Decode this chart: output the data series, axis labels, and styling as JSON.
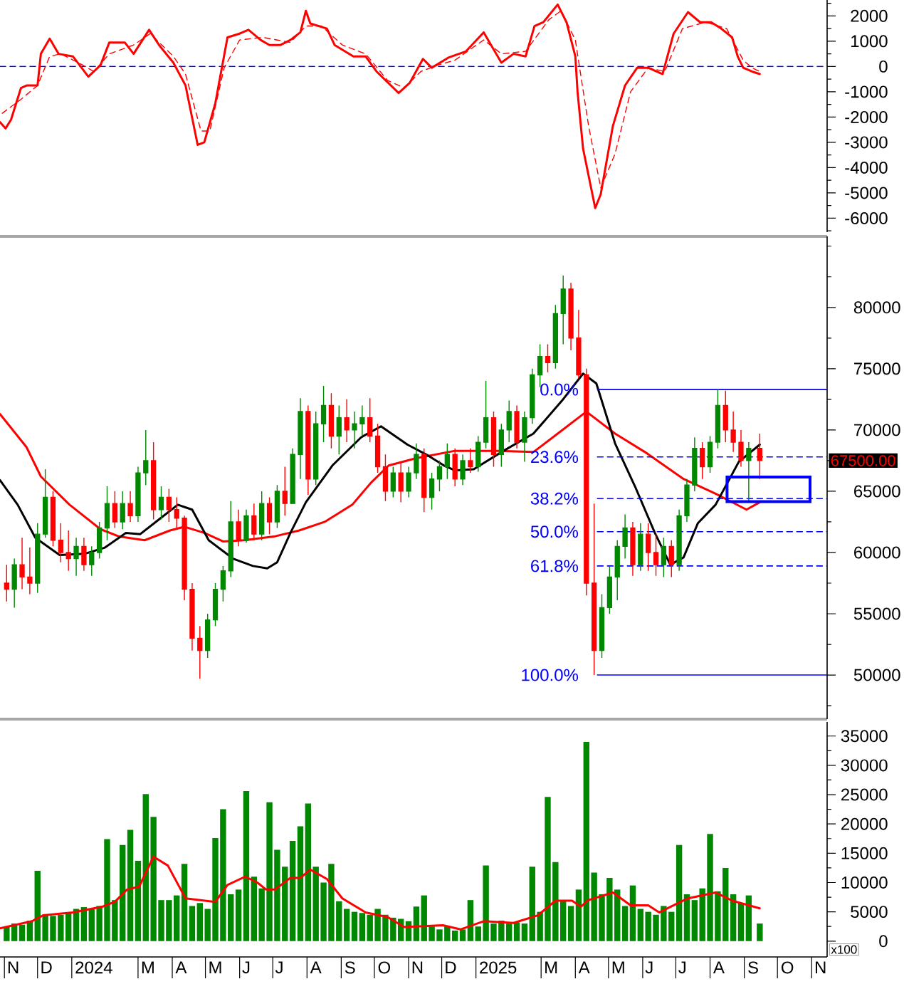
{
  "chart_data": [
    {
      "type": "line",
      "xlim": [
        "2023-10-28",
        "2025-11-15"
      ],
      "ylim": [
        -6550,
        2630
      ],
      "yticks": [
        {
          "value": 2500,
          "label": null
        },
        2000,
        {
          "value": 1500,
          "label": null
        },
        1000,
        {
          "value": 500,
          "label": null
        },
        0,
        {
          "value": -500,
          "label": null
        },
        -1000,
        {
          "value": -1500,
          "label": null
        },
        -2000,
        {
          "value": -2500,
          "label": null
        },
        -3000,
        {
          "value": -3500,
          "label": null
        },
        -4000,
        {
          "value": -4500,
          "label": null
        },
        -5000,
        {
          "value": -5500,
          "label": null
        },
        -6000,
        {
          "value": -6500,
          "label": null
        }
      ],
      "tick_labels": "y",
      "ref_lines": [
        {
          "axis": "y",
          "value": 0,
          "color": "#0000ff",
          "line_style": "dashed"
        }
      ],
      "series": [
        {
          "color": "#ff0000",
          "x": [
            "2023-10-28",
            "2023-11-02",
            "2023-11-07",
            "2023-11-16",
            "2023-11-21",
            "2023-12-01",
            "2023-12-04",
            "2023-12-12",
            "2023-12-20",
            "2024-01-02",
            "2024-01-16",
            "2024-01-27",
            "2024-02-04",
            "2024-02-18",
            "2024-02-26",
            "2024-03-11",
            "2024-03-20",
            "2024-04-02",
            "2024-04-13",
            "2024-04-24",
            "2024-04-30",
            "2024-05-10",
            "2024-05-21",
            "2024-06-01",
            "2024-06-09",
            "2024-06-20",
            "2024-06-28",
            "2024-07-08",
            "2024-07-17",
            "2024-07-26",
            "2024-07-31",
            "2024-08-04",
            "2024-08-19",
            "2024-08-26",
            "2024-09-12",
            "2024-09-23",
            "2024-10-03",
            "2024-10-23",
            "2024-11-02",
            "2024-11-14",
            "2024-11-22",
            "2024-12-07",
            "2024-12-23",
            "2025-01-08",
            "2025-01-24",
            "2025-02-04",
            "2025-02-15",
            "2025-02-23",
            "2025-03-03",
            "2025-03-16",
            "2025-03-24",
            "2025-04-01",
            "2025-04-03",
            "2025-04-08",
            "2025-04-19",
            "2025-04-24",
            "2025-05-05",
            "2025-05-16",
            "2025-05-27",
            "2025-06-06",
            "2025-06-19",
            "2025-06-29",
            "2025-07-12",
            "2025-07-23",
            "2025-08-02",
            "2025-08-11",
            "2025-08-21",
            "2025-08-26",
            "2025-08-31",
            "2025-09-08",
            "2025-09-15"
          ],
          "values": [
            -2200,
            -2450,
            -2100,
            -850,
            -750,
            -750,
            500,
            1100,
            500,
            400,
            -400,
            50,
            950,
            950,
            500,
            1450,
            850,
            150,
            -750,
            -3100,
            -3000,
            -1450,
            1150,
            1300,
            1450,
            1050,
            850,
            850,
            1050,
            1350,
            2200,
            1700,
            1500,
            850,
            400,
            400,
            -200,
            -1050,
            -650,
            300,
            -50,
            350,
            600,
            1350,
            150,
            500,
            400,
            1600,
            1750,
            2450,
            1750,
            400,
            -1000,
            -3250,
            -5600,
            -5050,
            -2350,
            -750,
            -50,
            -50,
            -300,
            1300,
            2150,
            1750,
            1750,
            1500,
            1150,
            400,
            -50,
            -200,
            -300
          ]
        },
        {
          "color": "#ff0000",
          "line_style": "dashed",
          "x": [
            "2023-10-30",
            "2023-11-16",
            "2023-12-01",
            "2023-12-12",
            "2023-12-22",
            "2024-01-07",
            "2024-01-21",
            "2024-02-04",
            "2024-02-26",
            "2024-03-12",
            "2024-04-02",
            "2024-04-13",
            "2024-04-27",
            "2024-05-05",
            "2024-05-18",
            "2024-06-01",
            "2024-06-22",
            "2024-07-17",
            "2024-07-31",
            "2024-08-14",
            "2024-09-02",
            "2024-09-23",
            "2024-10-13",
            "2024-10-28",
            "2024-11-12",
            "2024-11-27",
            "2024-12-13",
            "2025-01-08",
            "2025-01-24",
            "2025-02-15",
            "2025-03-08",
            "2025-03-19",
            "2025-04-01",
            "2025-04-13",
            "2025-04-24",
            "2025-05-07",
            "2025-05-21",
            "2025-06-06",
            "2025-06-21",
            "2025-07-07",
            "2025-07-28",
            "2025-08-16",
            "2025-08-31",
            "2025-09-08",
            "2025-09-15"
          ],
          "values": [
            -1850,
            -1300,
            -750,
            400,
            500,
            150,
            -200,
            500,
            850,
            1300,
            400,
            -300,
            -2550,
            -2550,
            -50,
            1050,
            1150,
            950,
            1600,
            1600,
            850,
            500,
            -550,
            -850,
            -200,
            50,
            250,
            1050,
            500,
            600,
            1850,
            2200,
            1050,
            -2350,
            -4800,
            -3450,
            -1000,
            -50,
            -200,
            1500,
            1750,
            1500,
            250,
            -50,
            -200
          ]
        }
      ]
    },
    {
      "type": "candlestick",
      "xlim": [
        "2023-10-28",
        "2025-11-15"
      ],
      "ylim": [
        46400,
        85800
      ],
      "yticks": [
        {
          "value": 47500,
          "label": null
        },
        50000,
        {
          "value": 52500,
          "label": null
        },
        55000,
        {
          "value": 57500,
          "label": null
        },
        60000,
        {
          "value": 62500,
          "label": null
        },
        65000,
        {
          "value": 67500,
          "label": null
        },
        70000,
        {
          "value": 72500,
          "label": null
        },
        75000,
        {
          "value": 77500,
          "label": null
        },
        80000,
        {
          "value": 82500,
          "label": null
        },
        {
          "value": 85000,
          "label": null
        }
      ],
      "tick_labels": "y",
      "x": [
        "2023-11-03",
        "2023-11-10",
        "2023-11-17",
        "2023-11-24",
        "2023-12-01",
        "2023-12-08",
        "2023-12-15",
        "2023-12-22",
        "2023-12-29",
        "2024-01-05",
        "2024-01-12",
        "2024-01-19",
        "2024-01-26",
        "2024-02-02",
        "2024-02-09",
        "2024-02-16",
        "2024-02-23",
        "2024-03-01",
        "2024-03-08",
        "2024-03-15",
        "2024-03-22",
        "2024-03-29",
        "2024-04-05",
        "2024-04-12",
        "2024-04-19",
        "2024-04-26",
        "2024-05-03",
        "2024-05-10",
        "2024-05-17",
        "2024-05-24",
        "2024-05-31",
        "2024-06-07",
        "2024-06-14",
        "2024-06-21",
        "2024-06-28",
        "2024-07-05",
        "2024-07-12",
        "2024-07-19",
        "2024-07-26",
        "2024-08-02",
        "2024-08-09",
        "2024-08-16",
        "2024-08-23",
        "2024-08-30",
        "2024-09-06",
        "2024-09-13",
        "2024-09-20",
        "2024-09-27",
        "2024-10-04",
        "2024-10-11",
        "2024-10-18",
        "2024-10-25",
        "2024-11-01",
        "2024-11-08",
        "2024-11-15",
        "2024-11-22",
        "2024-11-29",
        "2024-12-06",
        "2024-12-13",
        "2024-12-20",
        "2024-12-27",
        "2025-01-03",
        "2025-01-10",
        "2025-01-17",
        "2025-01-24",
        "2025-01-31",
        "2025-02-07",
        "2025-02-14",
        "2025-02-21",
        "2025-02-28",
        "2025-03-07",
        "2025-03-14",
        "2025-03-21",
        "2025-03-28",
        "2025-04-04",
        "2025-04-11",
        "2025-04-18",
        "2025-04-25",
        "2025-05-02",
        "2025-05-09",
        "2025-05-16",
        "2025-05-23",
        "2025-05-30",
        "2025-06-06",
        "2025-06-13",
        "2025-06-20",
        "2025-06-27",
        "2025-07-04",
        "2025-07-11",
        "2025-07-18",
        "2025-07-25",
        "2025-08-01",
        "2025-08-08",
        "2025-08-15",
        "2025-08-22",
        "2025-08-29",
        "2025-09-05",
        "2025-09-15"
      ],
      "ohlc": [
        [
          57500,
          59000,
          56000,
          57000
        ],
        [
          57000,
          59500,
          55500,
          59000
        ],
        [
          59000,
          61200,
          57000,
          58000
        ],
        [
          58000,
          60400,
          56600,
          57500
        ],
        [
          57500,
          62400,
          56700,
          61500
        ],
        [
          61500,
          66800,
          61200,
          64500
        ],
        [
          64500,
          65000,
          60500,
          61000
        ],
        [
          61000,
          62400,
          59200,
          60000
        ],
        [
          60000,
          61800,
          58500,
          59500
        ],
        [
          59500,
          61200,
          58100,
          60500
        ],
        [
          60500,
          61200,
          58500,
          59000
        ],
        [
          59000,
          60500,
          58100,
          60000
        ],
        [
          60000,
          62500,
          59500,
          62000
        ],
        [
          62000,
          65400,
          61000,
          64000
        ],
        [
          64000,
          65000,
          62000,
          62500
        ],
        [
          62500,
          65000,
          61900,
          64000
        ],
        [
          64000,
          65000,
          62500,
          63000
        ],
        [
          63000,
          67000,
          62500,
          66500
        ],
        [
          66500,
          70000,
          65500,
          67500
        ],
        [
          67500,
          69000,
          62700,
          63500
        ],
        [
          63500,
          65400,
          62700,
          64500
        ],
        [
          64500,
          65200,
          62500,
          63500
        ],
        [
          63500,
          64500,
          62000,
          62800
        ],
        [
          62800,
          63000,
          56100,
          57000
        ],
        [
          57000,
          57500,
          52000,
          53000
        ],
        [
          53000,
          54000,
          49700,
          52000
        ],
        [
          52000,
          55000,
          51400,
          54500
        ],
        [
          54500,
          57500,
          54000,
          57000
        ],
        [
          57000,
          58900,
          56000,
          58500
        ],
        [
          58500,
          64200,
          58000,
          62500
        ],
        [
          62500,
          63500,
          60500,
          61000
        ],
        [
          61000,
          63500,
          60800,
          63000
        ],
        [
          63000,
          64000,
          61000,
          61500
        ],
        [
          61500,
          65000,
          61000,
          64000
        ],
        [
          64000,
          64500,
          61500,
          62500
        ],
        [
          62500,
          65500,
          62000,
          65000
        ],
        [
          65000,
          67000,
          63000,
          64000
        ],
        [
          64000,
          68500,
          64000,
          68000
        ],
        [
          68000,
          72600,
          66000,
          71500
        ],
        [
          71500,
          72000,
          64700,
          66000
        ],
        [
          66000,
          71500,
          65500,
          70500
        ],
        [
          70500,
          73600,
          69000,
          72000
        ],
        [
          72000,
          73000,
          68500,
          69500
        ],
        [
          69500,
          72000,
          68000,
          71000
        ],
        [
          71000,
          72500,
          69000,
          70000
        ],
        [
          70000,
          71500,
          68500,
          70500
        ],
        [
          70500,
          72000,
          69500,
          71000
        ],
        [
          71000,
          72600,
          69000,
          69500
        ],
        [
          69500,
          70500,
          66500,
          67000
        ],
        [
          67000,
          68000,
          64200,
          65000
        ],
        [
          65000,
          67000,
          64500,
          66500
        ],
        [
          66500,
          67400,
          64100,
          65000
        ],
        [
          65000,
          67000,
          64500,
          66500
        ],
        [
          66500,
          68900,
          66000,
          68000
        ],
        [
          68000,
          68500,
          63300,
          64500
        ],
        [
          64500,
          66500,
          63500,
          66000
        ],
        [
          66000,
          67500,
          65000,
          67000
        ],
        [
          67000,
          68900,
          66000,
          68000
        ],
        [
          68000,
          68500,
          65400,
          66000
        ],
        [
          66000,
          68000,
          65500,
          67500
        ],
        [
          67500,
          68500,
          66500,
          67000
        ],
        [
          67000,
          69500,
          66600,
          69000
        ],
        [
          69000,
          74000,
          68500,
          71000
        ],
        [
          71000,
          71500,
          67000,
          68000
        ],
        [
          68000,
          70500,
          67000,
          70000
        ],
        [
          70000,
          72400,
          69000,
          71500
        ],
        [
          71500,
          72000,
          68500,
          69000
        ],
        [
          69000,
          71500,
          67400,
          71000
        ],
        [
          71000,
          75000,
          70500,
          74500
        ],
        [
          74500,
          77000,
          73500,
          76000
        ],
        [
          76000,
          77000,
          74700,
          75500
        ],
        [
          75500,
          80200,
          75000,
          79500
        ],
        [
          79500,
          82600,
          77000,
          81500
        ],
        [
          81500,
          82000,
          76500,
          77500
        ],
        [
          77500,
          79800,
          74200,
          74500
        ],
        [
          74500,
          75000,
          56500,
          57500
        ],
        [
          57500,
          64000,
          50000,
          52000
        ],
        [
          52000,
          56600,
          51400,
          55500
        ],
        [
          55500,
          58900,
          55000,
          58000
        ],
        [
          58000,
          61000,
          56100,
          60500
        ],
        [
          60500,
          63100,
          59500,
          62000
        ],
        [
          62000,
          62500,
          58100,
          59000
        ],
        [
          59000,
          62400,
          58500,
          61500
        ],
        [
          61500,
          62400,
          58500,
          60000
        ],
        [
          60000,
          61500,
          58100,
          59000
        ],
        [
          59000,
          61200,
          58000,
          60500
        ],
        [
          60500,
          61000,
          58000,
          59000
        ],
        [
          59000,
          63500,
          58500,
          63000
        ],
        [
          63000,
          66000,
          62500,
          65500
        ],
        [
          65500,
          69400,
          65000,
          68500
        ],
        [
          68500,
          69000,
          66000,
          67000
        ],
        [
          67000,
          69500,
          66500,
          69000
        ],
        [
          69000,
          73300,
          68500,
          72000
        ],
        [
          72000,
          73200,
          69000,
          70000
        ],
        [
          70000,
          71500,
          68200,
          69000
        ],
        [
          69000,
          70000,
          67000,
          67500
        ],
        [
          67500,
          69000,
          64200,
          68500
        ],
        [
          68500,
          69700,
          66000,
          67500
        ]
      ],
      "colors": [
        "#ff0000",
        "#008800",
        "#ff0000",
        "#ff0000",
        "#008800",
        "#008800",
        "#ff0000",
        "#ff0000",
        "#ff0000",
        "#008800",
        "#ff0000",
        "#008800",
        "#008800",
        "#008800",
        "#ff0000",
        "#008800",
        "#ff0000",
        "#008800",
        "#008800",
        "#ff0000",
        "#008800",
        "#ff0000",
        "#ff0000",
        "#ff0000",
        "#ff0000",
        "#ff0000",
        "#008800",
        "#008800",
        "#008800",
        "#008800",
        "#ff0000",
        "#008800",
        "#ff0000",
        "#008800",
        "#ff0000",
        "#008800",
        "#ff0000",
        "#008800",
        "#008800",
        "#ff0000",
        "#008800",
        "#008800",
        "#ff0000",
        "#008800",
        "#ff0000",
        "#008800",
        "#008800",
        "#ff0000",
        "#ff0000",
        "#ff0000",
        "#008800",
        "#ff0000",
        "#008800",
        "#008800",
        "#ff0000",
        "#008800",
        "#008800",
        "#008800",
        "#ff0000",
        "#008800",
        "#ff0000",
        "#008800",
        "#008800",
        "#ff0000",
        "#008800",
        "#008800",
        "#ff0000",
        "#008800",
        "#008800",
        "#008800",
        "#ff0000",
        "#008800",
        "#008800",
        "#ff0000",
        "#ff0000",
        "#ff0000",
        "#ff0000",
        "#008800",
        "#008800",
        "#008800",
        "#008800",
        "#ff0000",
        "#008800",
        "#ff0000",
        "#ff0000",
        "#008800",
        "#ff0000",
        "#008800",
        "#008800",
        "#008800",
        "#ff0000",
        "#008800",
        "#008800",
        "#ff0000",
        "#ff0000",
        "#ff0000",
        "#008800",
        "#ff0000"
      ],
      "series": [
        {
          "type": "line",
          "color": "#ff0000",
          "x": [
            "2023-10-28",
            "2023-11-21",
            "2023-12-04",
            "2023-12-30",
            "2024-01-27",
            "2024-02-13",
            "2024-03-07",
            "2024-03-30",
            "2024-04-12",
            "2024-04-30",
            "2024-05-17",
            "2024-06-05",
            "2024-07-02",
            "2024-07-25",
            "2024-08-17",
            "2024-09-11",
            "2024-09-28",
            "2024-10-14",
            "2024-11-08",
            "2024-12-13",
            "2025-01-22",
            "2025-02-22",
            "2025-03-16",
            "2025-04-11",
            "2025-05-07",
            "2025-06-03",
            "2025-07-08",
            "2025-08-06",
            "2025-09-03",
            "2025-09-15"
          ],
          "values": [
            71300,
            68600,
            66200,
            63900,
            61900,
            61300,
            61000,
            61800,
            62100,
            61600,
            60900,
            61000,
            61300,
            61800,
            62500,
            63900,
            65700,
            67100,
            67700,
            68300,
            68300,
            68200,
            69700,
            71500,
            69700,
            68200,
            66000,
            64800,
            63500,
            64100
          ]
        },
        {
          "type": "line",
          "color": "#000000",
          "x": [
            "2023-10-28",
            "2023-11-13",
            "2023-11-29",
            "2023-12-21",
            "2024-01-13",
            "2024-01-31",
            "2024-02-19",
            "2024-03-03",
            "2024-03-20",
            "2024-04-06",
            "2024-04-19",
            "2024-05-04",
            "2024-05-26",
            "2024-06-13",
            "2024-06-26",
            "2024-07-05",
            "2024-07-17",
            "2024-07-31",
            "2024-08-24",
            "2024-09-19",
            "2024-10-07",
            "2024-10-31",
            "2024-11-17",
            "2024-12-03",
            "2024-12-13",
            "2024-12-30",
            "2025-01-26",
            "2025-02-22",
            "2025-03-20",
            "2025-04-08",
            "2025-04-20",
            "2025-05-07",
            "2025-05-25",
            "2025-06-12",
            "2025-06-26",
            "2025-07-08",
            "2025-07-21",
            "2025-08-06",
            "2025-08-27",
            "2025-09-15"
          ],
          "values": [
            65900,
            63900,
            61200,
            59800,
            59900,
            60400,
            61600,
            61500,
            62700,
            63900,
            63500,
            61000,
            59500,
            58900,
            58700,
            59200,
            61600,
            64100,
            67100,
            69400,
            70300,
            68800,
            68000,
            67100,
            66700,
            66800,
            68300,
            69700,
            72400,
            74600,
            73800,
            68900,
            65400,
            61600,
            59000,
            59600,
            62400,
            63900,
            67400,
            68800
          ]
        },
        {
          "type": "line",
          "name": "0.0%",
          "color": "#0000ff",
          "x": [
            "2025-04-21",
            "2025-11-15"
          ],
          "values": [
            73300,
            73300
          ]
        },
        {
          "type": "line",
          "name": "23.6%",
          "color": "#0000ff",
          "line_style": "dashed",
          "x": [
            "2025-04-21",
            "2025-11-15"
          ],
          "values": [
            67800,
            67800
          ]
        },
        {
          "type": "line",
          "name": "38.2%",
          "color": "#0000ff",
          "line_style": "dashed",
          "x": [
            "2025-04-21",
            "2025-11-15"
          ],
          "values": [
            64400,
            64400
          ]
        },
        {
          "type": "line",
          "name": "50.0%",
          "color": "#0000ff",
          "line_style": "dashed",
          "x": [
            "2025-04-21",
            "2025-11-15"
          ],
          "values": [
            61700,
            61700
          ]
        },
        {
          "type": "line",
          "name": "61.8%",
          "color": "#0000ff",
          "line_style": "dashed",
          "x": [
            "2025-04-21",
            "2025-11-15"
          ],
          "values": [
            58900,
            58900
          ]
        },
        {
          "type": "line",
          "name": "100.0%",
          "color": "#0000ff",
          "x": [
            "2025-04-21",
            "2025-11-15"
          ],
          "values": [
            50000,
            50000
          ]
        }
      ],
      "annotations": [
        "67500.00"
      ]
    },
    {
      "type": "bar",
      "xlim": [
        "2023-10-28",
        "2025-11-15"
      ],
      "ylim": [
        -2700,
        37400
      ],
      "yticks": [
        0,
        {
          "value": 2500,
          "label": null
        },
        5000,
        {
          "value": 7500,
          "label": null
        },
        10000,
        {
          "value": 12500,
          "label": null
        },
        15000,
        {
          "value": 17500,
          "label": null
        },
        20000,
        {
          "value": 22500,
          "label": null
        },
        25000,
        {
          "value": 27500,
          "label": null
        },
        30000,
        {
          "value": 32500,
          "label": null
        },
        35000
      ],
      "xticks": [
        {
          "value": "2023-11-01",
          "label": null
        },
        {
          "value": "2023-11-09",
          "label": "N"
        },
        {
          "value": "2023-12-01",
          "label": null
        },
        {
          "value": "2023-12-09",
          "label": "D"
        },
        {
          "value": "2024-01-01",
          "label": null
        },
        {
          "value": "2024-01-21",
          "label": "2024"
        },
        {
          "value": "2024-03-01",
          "label": null
        },
        {
          "value": "2024-03-10",
          "label": "M"
        },
        {
          "value": "2024-04-01",
          "label": null
        },
        {
          "value": "2024-04-09",
          "label": "A"
        },
        {
          "value": "2024-05-01",
          "label": null
        },
        {
          "value": "2024-05-10",
          "label": "M"
        },
        {
          "value": "2024-06-01",
          "label": null
        },
        {
          "value": "2024-06-07",
          "label": "J"
        },
        {
          "value": "2024-07-01",
          "label": null
        },
        {
          "value": "2024-07-07",
          "label": "J"
        },
        {
          "value": "2024-08-01",
          "label": null
        },
        {
          "value": "2024-08-09",
          "label": "A"
        },
        {
          "value": "2024-09-01",
          "label": null
        },
        {
          "value": "2024-09-09",
          "label": "S"
        },
        {
          "value": "2024-10-01",
          "label": null
        },
        {
          "value": "2024-10-10",
          "label": "O"
        },
        {
          "value": "2024-11-01",
          "label": null
        },
        {
          "value": "2024-11-09",
          "label": "N"
        },
        {
          "value": "2024-12-01",
          "label": null
        },
        {
          "value": "2024-12-09",
          "label": "D"
        },
        {
          "value": "2025-01-01",
          "label": null
        },
        {
          "value": "2025-01-21",
          "label": "2025"
        },
        {
          "value": "2025-03-01",
          "label": null
        },
        {
          "value": "2025-03-10",
          "label": "M"
        },
        {
          "value": "2025-04-01",
          "label": null
        },
        {
          "value": "2025-04-09",
          "label": "A"
        },
        {
          "value": "2025-05-01",
          "label": null
        },
        {
          "value": "2025-05-10",
          "label": "M"
        },
        {
          "value": "2025-06-01",
          "label": null
        },
        {
          "value": "2025-06-07",
          "label": "J"
        },
        {
          "value": "2025-07-01",
          "label": null
        },
        {
          "value": "2025-07-07",
          "label": "J"
        },
        {
          "value": "2025-08-01",
          "label": null
        },
        {
          "value": "2025-08-09",
          "label": "A"
        },
        {
          "value": "2025-09-01",
          "label": null
        },
        {
          "value": "2025-09-09",
          "label": "S"
        },
        {
          "value": "2025-10-01",
          "label": null
        },
        {
          "value": "2025-10-10",
          "label": "O"
        },
        {
          "value": "2025-11-01",
          "label": null
        },
        {
          "value": "2025-11-09",
          "label": "N"
        }
      ],
      "x": [
        "2023-11-03",
        "2023-11-10",
        "2023-11-17",
        "2023-11-24",
        "2023-12-01",
        "2023-12-08",
        "2023-12-15",
        "2023-12-22",
        "2023-12-29",
        "2024-01-05",
        "2024-01-12",
        "2024-01-19",
        "2024-01-26",
        "2024-02-02",
        "2024-02-09",
        "2024-02-16",
        "2024-02-23",
        "2024-03-01",
        "2024-03-08",
        "2024-03-15",
        "2024-03-22",
        "2024-03-29",
        "2024-04-05",
        "2024-04-12",
        "2024-04-19",
        "2024-04-26",
        "2024-05-03",
        "2024-05-10",
        "2024-05-17",
        "2024-05-24",
        "2024-05-31",
        "2024-06-07",
        "2024-06-14",
        "2024-06-21",
        "2024-06-28",
        "2024-07-05",
        "2024-07-12",
        "2024-07-19",
        "2024-07-26",
        "2024-08-02",
        "2024-08-09",
        "2024-08-16",
        "2024-08-23",
        "2024-08-30",
        "2024-09-06",
        "2024-09-13",
        "2024-09-20",
        "2024-09-27",
        "2024-10-04",
        "2024-10-11",
        "2024-10-18",
        "2024-10-25",
        "2024-11-01",
        "2024-11-08",
        "2024-11-15",
        "2024-11-22",
        "2024-11-29",
        "2024-12-06",
        "2024-12-13",
        "2024-12-20",
        "2024-12-27",
        "2025-01-03",
        "2025-01-10",
        "2025-01-17",
        "2025-01-24",
        "2025-01-31",
        "2025-02-07",
        "2025-02-14",
        "2025-02-21",
        "2025-02-28",
        "2025-03-07",
        "2025-03-14",
        "2025-03-21",
        "2025-03-28",
        "2025-04-04",
        "2025-04-11",
        "2025-04-18",
        "2025-04-25",
        "2025-05-02",
        "2025-05-09",
        "2025-05-16",
        "2025-05-23",
        "2025-05-30",
        "2025-06-06",
        "2025-06-13",
        "2025-06-20",
        "2025-06-27",
        "2025-07-04",
        "2025-07-11",
        "2025-07-18",
        "2025-07-25",
        "2025-08-01",
        "2025-08-08",
        "2025-08-15",
        "2025-08-22",
        "2025-08-29",
        "2025-09-05",
        "2025-09-15"
      ],
      "series": [
        {
          "color": "#008800",
          "values": [
            2500,
            3000,
            2800,
            3500,
            12000,
            4500,
            4300,
            4500,
            4800,
            5500,
            5800,
            5500,
            6000,
            17400,
            7000,
            16400,
            19000,
            13700,
            25100,
            21200,
            7000,
            7000,
            7800,
            13200,
            6000,
            6500,
            5500,
            17600,
            22500,
            8000,
            8800,
            25600,
            11000,
            9000,
            23700,
            15600,
            12700,
            17100,
            19600,
            23500,
            12700,
            10000,
            13200,
            6800,
            5500,
            5000,
            4800,
            4500,
            5500,
            4500,
            4000,
            3800,
            3400,
            5900,
            7800,
            2500,
            2000,
            2500,
            1800,
            2000,
            7000,
            2500,
            12900,
            3000,
            3500,
            3000,
            3200,
            3000,
            12700,
            5000,
            24600,
            13500,
            7000,
            6000,
            8800,
            34000,
            11700,
            8000,
            10800,
            8800,
            6000,
            9500,
            5500,
            5000,
            4500,
            6000,
            5000,
            16400,
            8000,
            7000,
            9000,
            18300,
            8500,
            12500,
            8000,
            6500,
            7800,
            3000
          ]
        },
        {
          "type": "line",
          "color": "#ff0000",
          "x": [
            "2023-10-28",
            "2023-11-26",
            "2023-12-06",
            "2024-01-02",
            "2024-01-29",
            "2024-02-09",
            "2024-02-20",
            "2024-03-02",
            "2024-03-15",
            "2024-03-28",
            "2024-04-13",
            "2024-05-10",
            "2024-05-21",
            "2024-06-06",
            "2024-06-17",
            "2024-06-25",
            "2024-07-03",
            "2024-07-17",
            "2024-07-26",
            "2024-08-04",
            "2024-08-19",
            "2024-09-02",
            "2024-09-23",
            "2024-10-13",
            "2024-10-28",
            "2024-12-02",
            "2024-12-18",
            "2025-01-08",
            "2025-02-04",
            "2025-02-26",
            "2025-03-14",
            "2025-03-29",
            "2025-04-06",
            "2025-04-13",
            "2025-05-05",
            "2025-05-21",
            "2025-06-06",
            "2025-06-16",
            "2025-07-02",
            "2025-07-12",
            "2025-08-06",
            "2025-08-21",
            "2025-09-15"
          ],
          "values": [
            2200,
            3400,
            4400,
            4900,
            5900,
            6700,
            8800,
            9300,
            14400,
            12900,
            7300,
            6700,
            9600,
            11000,
            10000,
            8800,
            8800,
            10800,
            10800,
            12200,
            10600,
            7300,
            4900,
            4100,
            2400,
            2700,
            2000,
            3400,
            3100,
            4400,
            6900,
            6900,
            5900,
            7000,
            8300,
            6100,
            6100,
            4900,
            6400,
            7300,
            8300,
            6900,
            5600
          ]
        }
      ],
      "annotations": [
        "x100"
      ]
    }
  ]
}
